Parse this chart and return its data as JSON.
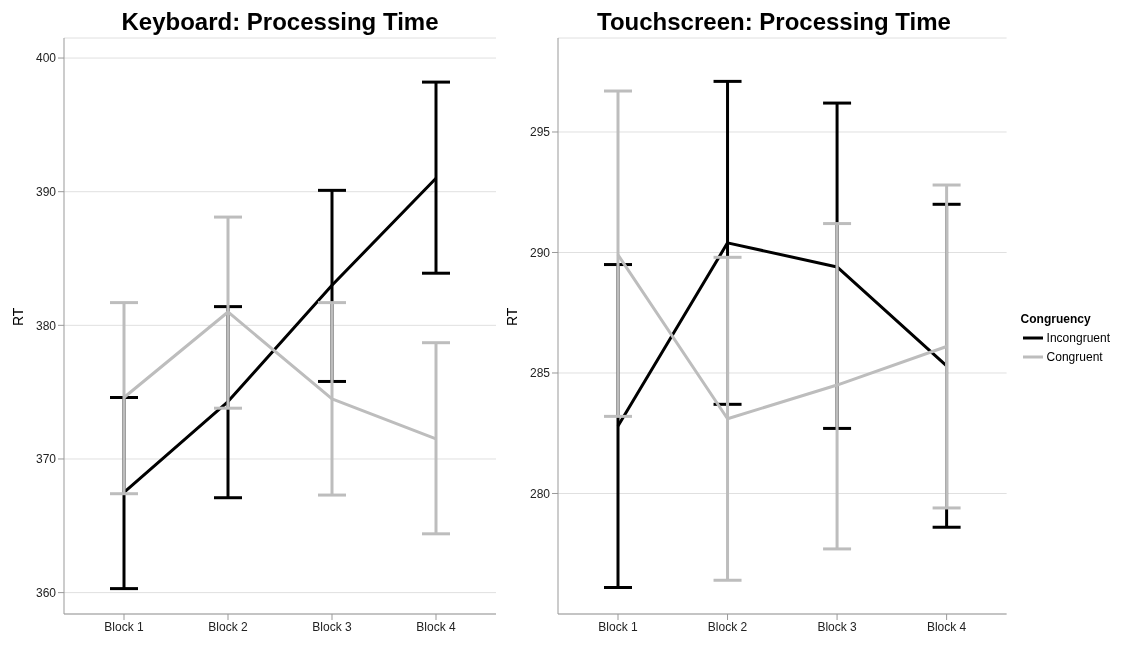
{
  "chart_data": [
    {
      "type": "line",
      "title": "Keyboard: Processing Time",
      "ylabel": "RT",
      "categories": [
        "Block 1",
        "Block 2",
        "Block 3",
        "Block 4"
      ],
      "ylim": [
        358.4,
        401.5
      ],
      "yticks": [
        360,
        370,
        380,
        390,
        400
      ],
      "grid": "y",
      "marker": "none",
      "line_style": "solid",
      "series": [
        {
          "color": "#000000",
          "values": [
            367.5,
            374.3,
            383.0,
            391.0
          ],
          "errors": [
            [
              360.3,
              374.6
            ],
            [
              367.1,
              381.4
            ],
            [
              375.8,
              390.1
            ],
            [
              383.9,
              398.2
            ]
          ]
        },
        {
          "color": "#bdbdbd",
          "values": [
            374.6,
            381.0,
            374.5,
            371.5
          ],
          "errors": [
            [
              367.4,
              381.7
            ],
            [
              373.8,
              388.1
            ],
            [
              367.3,
              381.7
            ],
            [
              364.4,
              378.7
            ]
          ]
        }
      ]
    },
    {
      "type": "line",
      "title": "Touchscreen: Processing Time",
      "ylabel": "RT",
      "categories": [
        "Block 1",
        "Block 2",
        "Block 3",
        "Block 4"
      ],
      "ylim": [
        275.0,
        298.9
      ],
      "yticks": [
        280,
        285,
        290,
        295
      ],
      "grid": "y",
      "marker": "none",
      "line_style": "solid",
      "legend": "right",
      "legend_title": "Congruency",
      "series": [
        {
          "name": "Incongruent",
          "color": "#000000",
          "values": [
            282.8,
            290.4,
            289.4,
            285.3
          ],
          "errors": [
            [
              276.1,
              289.5
            ],
            [
              283.7,
              297.1
            ],
            [
              282.7,
              296.2
            ],
            [
              278.6,
              292.0
            ]
          ]
        },
        {
          "name": "Congruent",
          "color": "#bdbdbd",
          "values": [
            289.9,
            283.1,
            284.5,
            286.1
          ],
          "errors": [
            [
              283.2,
              296.7
            ],
            [
              276.4,
              289.8
            ],
            [
              277.7,
              291.2
            ],
            [
              279.4,
              292.8
            ]
          ]
        }
      ]
    }
  ]
}
